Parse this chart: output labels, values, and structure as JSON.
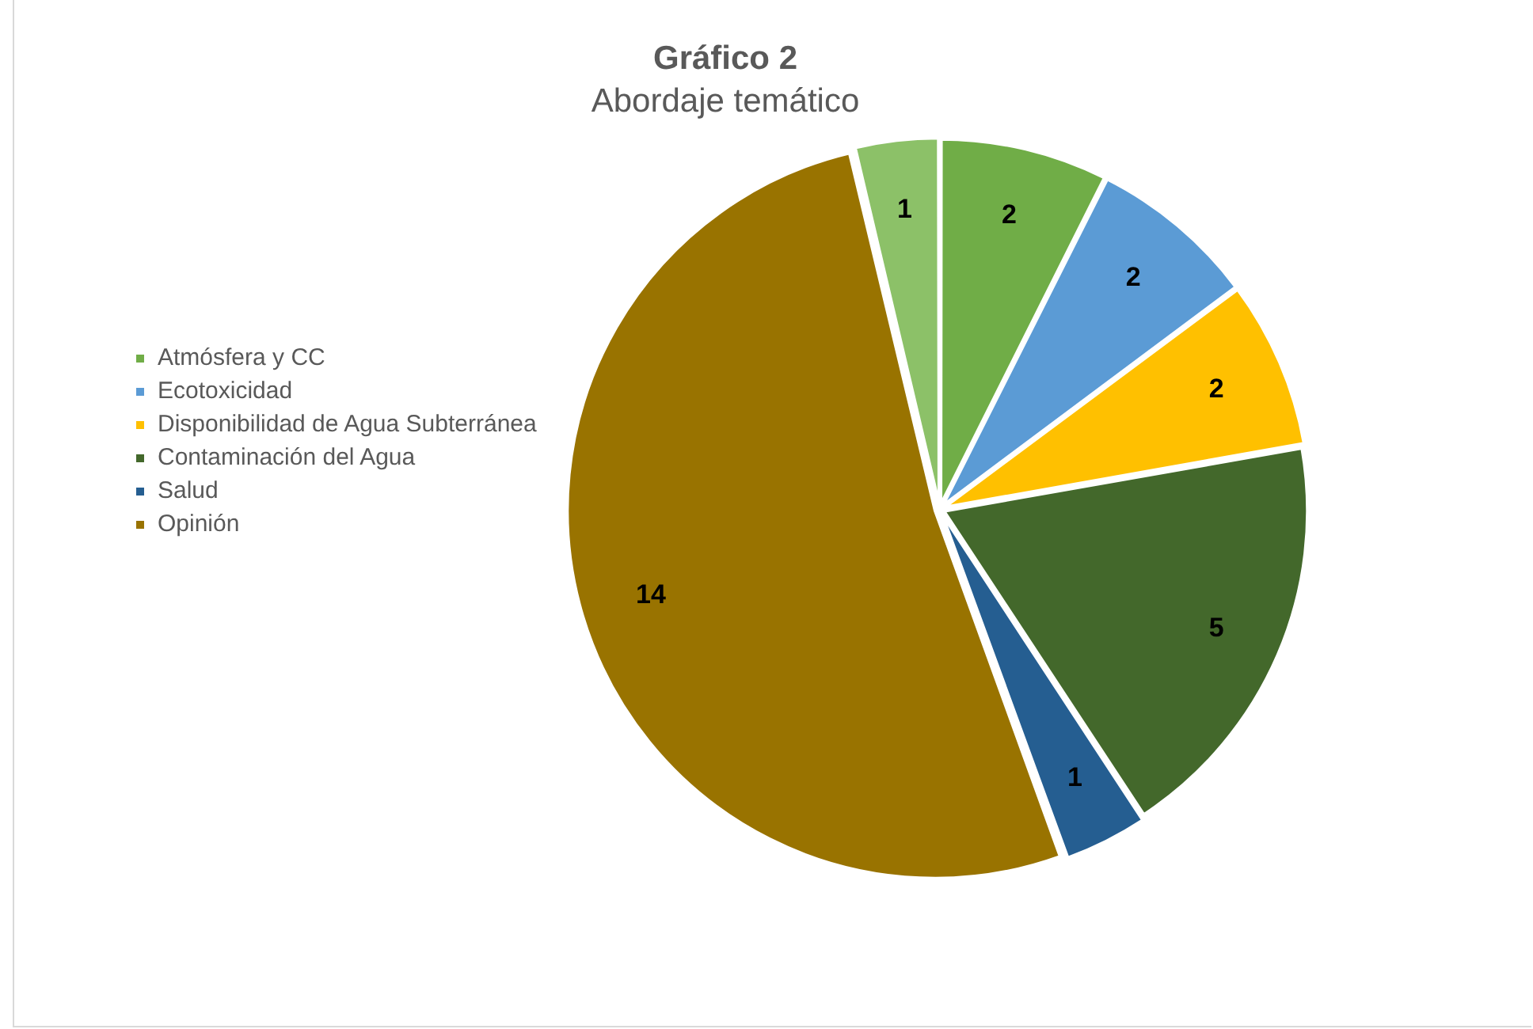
{
  "chart_data": {
    "type": "pie",
    "title": "Gráfico 2",
    "subtitle": "Abordaje temático",
    "categories": [
      "Atmósfera y CC",
      "Ecotoxicidad",
      "Disponibilidad de Agua Subterránea",
      "Contaminación del Agua",
      "Salud",
      "Opinión",
      null
    ],
    "values": [
      2,
      2,
      2,
      5,
      1,
      14,
      1
    ],
    "colors": [
      "#70ad47",
      "#5b9bd5",
      "#ffc000",
      "#43682b",
      "#255e91",
      "#997300",
      "#8cc168"
    ],
    "data_labels": true,
    "legend": "left"
  }
}
